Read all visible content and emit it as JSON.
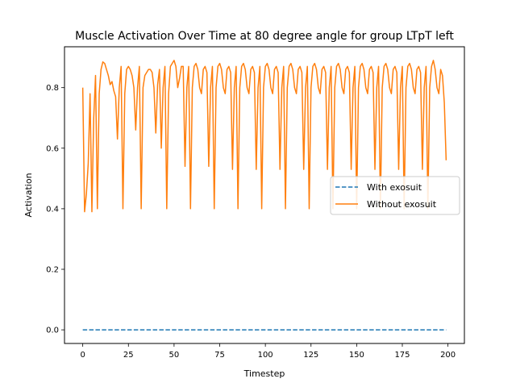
{
  "chart_data": {
    "type": "line",
    "title": "Muscle Activation Over Time at 80 degree angle for group LTpT left",
    "xlabel": "Timestep",
    "ylabel": "Activation",
    "xlim": [
      -10,
      209
    ],
    "ylim": [
      -0.045,
      0.935
    ],
    "xticks": [
      0,
      25,
      50,
      75,
      100,
      125,
      150,
      175,
      200
    ],
    "yticks": [
      0.0,
      0.2,
      0.4,
      0.6,
      0.8
    ],
    "legend": {
      "placement": "center-right"
    },
    "series": [
      {
        "name": "With exosuit",
        "color": "#1f77b4",
        "style": "dashed",
        "x_range": [
          0,
          199
        ],
        "values_constant": 0.0
      },
      {
        "name": "Without exosuit",
        "color": "#ff7f0e",
        "style": "solid",
        "points": [
          [
            0,
            0.8
          ],
          [
            1,
            0.39
          ],
          [
            2,
            0.45
          ],
          [
            3,
            0.55
          ],
          [
            4,
            0.78
          ],
          [
            5,
            0.39
          ],
          [
            6,
            0.7
          ],
          [
            7,
            0.84
          ],
          [
            8,
            0.4
          ],
          [
            9,
            0.78
          ],
          [
            10,
            0.86
          ],
          [
            11,
            0.885
          ],
          [
            12,
            0.88
          ],
          [
            13,
            0.86
          ],
          [
            14,
            0.84
          ],
          [
            15,
            0.81
          ],
          [
            16,
            0.82
          ],
          [
            17,
            0.79
          ],
          [
            18,
            0.77
          ],
          [
            19,
            0.63
          ],
          [
            20,
            0.8
          ],
          [
            21,
            0.87
          ],
          [
            22,
            0.4
          ],
          [
            23,
            0.78
          ],
          [
            24,
            0.86
          ],
          [
            25,
            0.87
          ],
          [
            26,
            0.86
          ],
          [
            27,
            0.84
          ],
          [
            28,
            0.8
          ],
          [
            29,
            0.66
          ],
          [
            30,
            0.8
          ],
          [
            31,
            0.87
          ],
          [
            32,
            0.4
          ],
          [
            33,
            0.8
          ],
          [
            34,
            0.84
          ],
          [
            35,
            0.85
          ],
          [
            36,
            0.86
          ],
          [
            37,
            0.86
          ],
          [
            38,
            0.85
          ],
          [
            39,
            0.8
          ],
          [
            40,
            0.65
          ],
          [
            41,
            0.81
          ],
          [
            42,
            0.86
          ],
          [
            43,
            0.6
          ],
          [
            44,
            0.8
          ],
          [
            45,
            0.87
          ],
          [
            46,
            0.4
          ],
          [
            47,
            0.78
          ],
          [
            48,
            0.87
          ],
          [
            49,
            0.88
          ],
          [
            50,
            0.89
          ],
          [
            51,
            0.87
          ],
          [
            52,
            0.8
          ],
          [
            53,
            0.83
          ],
          [
            54,
            0.87
          ],
          [
            55,
            0.87
          ],
          [
            56,
            0.54
          ],
          [
            57,
            0.8
          ],
          [
            58,
            0.87
          ],
          [
            59,
            0.4
          ],
          [
            60,
            0.8
          ],
          [
            61,
            0.87
          ],
          [
            62,
            0.88
          ],
          [
            63,
            0.86
          ],
          [
            64,
            0.8
          ],
          [
            65,
            0.78
          ],
          [
            66,
            0.86
          ],
          [
            67,
            0.87
          ],
          [
            68,
            0.85
          ],
          [
            69,
            0.54
          ],
          [
            70,
            0.8
          ],
          [
            71,
            0.87
          ],
          [
            72,
            0.4
          ],
          [
            73,
            0.8
          ],
          [
            74,
            0.87
          ],
          [
            75,
            0.88
          ],
          [
            76,
            0.86
          ],
          [
            77,
            0.8
          ],
          [
            78,
            0.78
          ],
          [
            79,
            0.86
          ],
          [
            80,
            0.87
          ],
          [
            81,
            0.85
          ],
          [
            82,
            0.53
          ],
          [
            83,
            0.8
          ],
          [
            84,
            0.87
          ],
          [
            85,
            0.4
          ],
          [
            86,
            0.8
          ],
          [
            87,
            0.87
          ],
          [
            88,
            0.88
          ],
          [
            89,
            0.86
          ],
          [
            90,
            0.8
          ],
          [
            91,
            0.78
          ],
          [
            92,
            0.86
          ],
          [
            93,
            0.87
          ],
          [
            94,
            0.85
          ],
          [
            95,
            0.53
          ],
          [
            96,
            0.8
          ],
          [
            97,
            0.87
          ],
          [
            98,
            0.4
          ],
          [
            99,
            0.8
          ],
          [
            100,
            0.87
          ],
          [
            101,
            0.88
          ],
          [
            102,
            0.86
          ],
          [
            103,
            0.8
          ],
          [
            104,
            0.78
          ],
          [
            105,
            0.86
          ],
          [
            106,
            0.87
          ],
          [
            107,
            0.85
          ],
          [
            108,
            0.53
          ],
          [
            109,
            0.8
          ],
          [
            110,
            0.87
          ],
          [
            111,
            0.4
          ],
          [
            112,
            0.8
          ],
          [
            113,
            0.87
          ],
          [
            114,
            0.88
          ],
          [
            115,
            0.86
          ],
          [
            116,
            0.8
          ],
          [
            117,
            0.78
          ],
          [
            118,
            0.86
          ],
          [
            119,
            0.87
          ],
          [
            120,
            0.85
          ],
          [
            121,
            0.53
          ],
          [
            122,
            0.8
          ],
          [
            123,
            0.87
          ],
          [
            124,
            0.4
          ],
          [
            125,
            0.8
          ],
          [
            126,
            0.87
          ],
          [
            127,
            0.88
          ],
          [
            128,
            0.86
          ],
          [
            129,
            0.8
          ],
          [
            130,
            0.78
          ],
          [
            131,
            0.86
          ],
          [
            132,
            0.87
          ],
          [
            133,
            0.85
          ],
          [
            134,
            0.53
          ],
          [
            135,
            0.8
          ],
          [
            136,
            0.87
          ],
          [
            137,
            0.4
          ],
          [
            138,
            0.8
          ],
          [
            139,
            0.87
          ],
          [
            140,
            0.88
          ],
          [
            141,
            0.86
          ],
          [
            142,
            0.8
          ],
          [
            143,
            0.78
          ],
          [
            144,
            0.86
          ],
          [
            145,
            0.87
          ],
          [
            146,
            0.85
          ],
          [
            147,
            0.53
          ],
          [
            148,
            0.8
          ],
          [
            149,
            0.87
          ],
          [
            150,
            0.4
          ],
          [
            151,
            0.8
          ],
          [
            152,
            0.87
          ],
          [
            153,
            0.88
          ],
          [
            154,
            0.86
          ],
          [
            155,
            0.8
          ],
          [
            156,
            0.78
          ],
          [
            157,
            0.86
          ],
          [
            158,
            0.87
          ],
          [
            159,
            0.85
          ],
          [
            160,
            0.53
          ],
          [
            161,
            0.8
          ],
          [
            162,
            0.87
          ],
          [
            163,
            0.4
          ],
          [
            164,
            0.8
          ],
          [
            165,
            0.87
          ],
          [
            166,
            0.88
          ],
          [
            167,
            0.86
          ],
          [
            168,
            0.8
          ],
          [
            169,
            0.78
          ],
          [
            170,
            0.86
          ],
          [
            171,
            0.87
          ],
          [
            172,
            0.85
          ],
          [
            173,
            0.53
          ],
          [
            174,
            0.8
          ],
          [
            175,
            0.87
          ],
          [
            176,
            0.4
          ],
          [
            177,
            0.8
          ],
          [
            178,
            0.87
          ],
          [
            179,
            0.88
          ],
          [
            180,
            0.86
          ],
          [
            181,
            0.8
          ],
          [
            182,
            0.78
          ],
          [
            183,
            0.86
          ],
          [
            184,
            0.87
          ],
          [
            185,
            0.85
          ],
          [
            186,
            0.53
          ],
          [
            187,
            0.8
          ],
          [
            188,
            0.87
          ],
          [
            189,
            0.4
          ],
          [
            190,
            0.8
          ],
          [
            191,
            0.87
          ],
          [
            192,
            0.89
          ],
          [
            193,
            0.86
          ],
          [
            194,
            0.8
          ],
          [
            195,
            0.78
          ],
          [
            196,
            0.86
          ],
          [
            197,
            0.84
          ],
          [
            198,
            0.75
          ],
          [
            199,
            0.56
          ]
        ]
      }
    ]
  }
}
